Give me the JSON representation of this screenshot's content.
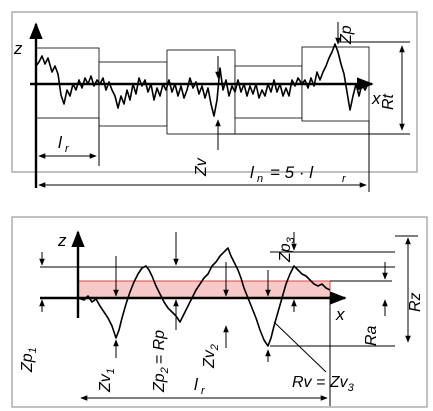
{
  "top_panel": {
    "axis_z": "z",
    "axis_x": "x",
    "peak_label": "Zp",
    "valley_label": "Zv",
    "total_height_label": "Rt",
    "sampling_length_label": "l",
    "sampling_length_sub": "r",
    "evaluation_length_label": "l",
    "evaluation_length_sub": "n",
    "evaluation_length_formula": "= 5 · l",
    "evaluation_length_formula_sub": "r"
  },
  "bottom_panel": {
    "axis_z": "z",
    "axis_x": "x",
    "zp1": "Zp",
    "zp1_sub": "1",
    "zv1": "Zv",
    "zv1_sub": "1",
    "zp2": "Zp",
    "zp2_sub": "2",
    "zp2_eq": "= Rp",
    "zv2": "Zv",
    "zv2_sub": "2",
    "zp3": "Zp",
    "zp3_sub": "3",
    "ra": "Ra",
    "rz": "Rz",
    "rv_eq": "Rv = Zv",
    "rv_eq_sub": "3",
    "sampling_length_label": "l",
    "sampling_length_sub": "r"
  },
  "colors": {
    "band_fill": "#f6c8c8",
    "band_stroke": "#d94a4a",
    "frame": "#9a9a9a"
  }
}
